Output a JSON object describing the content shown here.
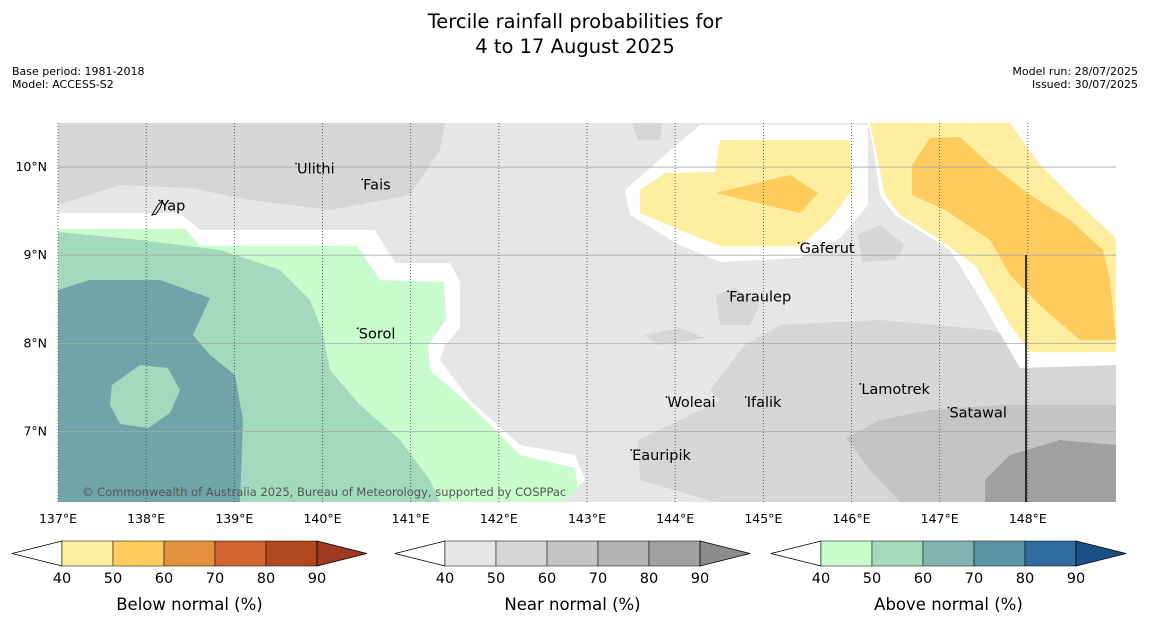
{
  "header": {
    "title_line1": "Tercile rainfall probabilities for",
    "title_line2": "4 to 17 August 2025",
    "base_period": "Base period: 1981-2018",
    "model": "Model: ACCESS-S2",
    "model_run": "Model run: 28/07/2025",
    "issued": "Issued: 30/07/2025"
  },
  "map": {
    "lon_range": [
      137.0,
      149.0
    ],
    "lat_range": [
      6.2,
      10.5
    ],
    "lon_ticks": [
      {
        "value": 137,
        "label": "137°E"
      },
      {
        "value": 138,
        "label": "138°E"
      },
      {
        "value": 139,
        "label": "139°E"
      },
      {
        "value": 140,
        "label": "140°E"
      },
      {
        "value": 141,
        "label": "141°E"
      },
      {
        "value": 142,
        "label": "142°E"
      },
      {
        "value": 143,
        "label": "143°E"
      },
      {
        "value": 144,
        "label": "144°E"
      },
      {
        "value": 145,
        "label": "145°E"
      },
      {
        "value": 146,
        "label": "146°E"
      },
      {
        "value": 147,
        "label": "147°E"
      },
      {
        "value": 148,
        "label": "148°E"
      }
    ],
    "lat_ticks": [
      {
        "value": 10,
        "label": "10°N"
      },
      {
        "value": 9,
        "label": "9°N"
      },
      {
        "value": 8,
        "label": "8°N"
      },
      {
        "value": 7,
        "label": "7°N"
      }
    ],
    "places": [
      {
        "name": "Ulithi",
        "lon": 139.7,
        "lat": 9.95
      },
      {
        "name": "Fais",
        "lon": 140.45,
        "lat": 9.77
      },
      {
        "name": "Yap",
        "lon": 138.15,
        "lat": 9.53
      },
      {
        "name": "Gaferut",
        "lon": 145.4,
        "lat": 9.05
      },
      {
        "name": "Faraulep",
        "lon": 144.6,
        "lat": 8.5
      },
      {
        "name": "Sorol",
        "lon": 140.4,
        "lat": 8.08
      },
      {
        "name": "Lamotrek",
        "lon": 146.1,
        "lat": 7.45
      },
      {
        "name": "Woleai",
        "lon": 143.9,
        "lat": 7.3
      },
      {
        "name": "Ifalik",
        "lon": 144.8,
        "lat": 7.3
      },
      {
        "name": "Satawal",
        "lon": 147.1,
        "lat": 7.18
      },
      {
        "name": "Eauripik",
        "lon": 143.5,
        "lat": 6.7
      }
    ],
    "copyright": "© Commonwealth of Australia 2025, Bureau of Meteorology, supported by COSPPac"
  },
  "legends": [
    {
      "name": "below",
      "label": "Below normal (%)",
      "colors": [
        "#ffeda0",
        "#fecc5c",
        "#e4913f",
        "#d16431",
        "#b04820",
        "#9e3a1f"
      ],
      "ticks": [
        "40",
        "50",
        "60",
        "70",
        "80",
        "90"
      ]
    },
    {
      "name": "near",
      "label": "Near normal (%)",
      "colors": [
        "#e6e6e6",
        "#d6d6d6",
        "#c4c4c4",
        "#b2b2b2",
        "#a1a1a1",
        "#8c8c8c"
      ],
      "ticks": [
        "40",
        "50",
        "60",
        "70",
        "80",
        "90"
      ]
    },
    {
      "name": "above",
      "label": "Above normal (%)",
      "colors": [
        "#c8fccc",
        "#a3d9bd",
        "#82b5b0",
        "#5a93a3",
        "#2f6b9e",
        "#1c4f85"
      ],
      "ticks": [
        "40",
        "50",
        "60",
        "70",
        "80",
        "90"
      ]
    }
  ]
}
